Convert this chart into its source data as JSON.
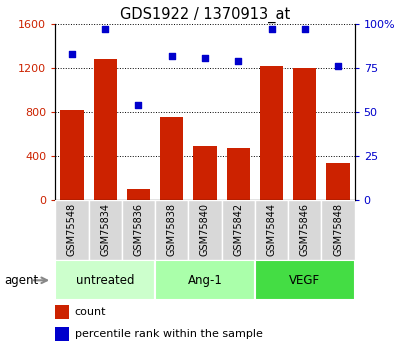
{
  "title": "GDS1922 / 1370913_at",
  "categories": [
    "GSM75548",
    "GSM75834",
    "GSM75836",
    "GSM75838",
    "GSM75840",
    "GSM75842",
    "GSM75844",
    "GSM75846",
    "GSM75848"
  ],
  "bar_values": [
    820,
    1280,
    100,
    760,
    490,
    470,
    1220,
    1200,
    340
  ],
  "scatter_values": [
    83,
    97,
    54,
    82,
    81,
    79,
    97,
    97,
    76
  ],
  "bar_color": "#CC2200",
  "scatter_color": "#0000CC",
  "ylim_left": [
    0,
    1600
  ],
  "ylim_right": [
    0,
    100
  ],
  "yticks_left": [
    0,
    400,
    800,
    1200,
    1600
  ],
  "ytick_labels_left": [
    "0",
    "400",
    "800",
    "1200",
    "1600"
  ],
  "yticks_right": [
    0,
    25,
    50,
    75,
    100
  ],
  "ytick_labels_right": [
    "0",
    "25",
    "50",
    "75",
    "100%"
  ],
  "groups": [
    {
      "label": "untreated",
      "start": 0,
      "end": 3,
      "color": "#CCFFCC"
    },
    {
      "label": "Ang-1",
      "start": 3,
      "end": 6,
      "color": "#AAFFAA"
    },
    {
      "label": "VEGF",
      "start": 6,
      "end": 9,
      "color": "#44DD44"
    }
  ],
  "legend_count_label": "count",
  "legend_percentile_label": "percentile rank within the sample",
  "agent_label": "agent",
  "tick_label_color_left": "#CC2200",
  "tick_label_color_right": "#0000CC",
  "xticklabel_bg": "#DDDDDD",
  "plot_bg": "#FFFFFF"
}
